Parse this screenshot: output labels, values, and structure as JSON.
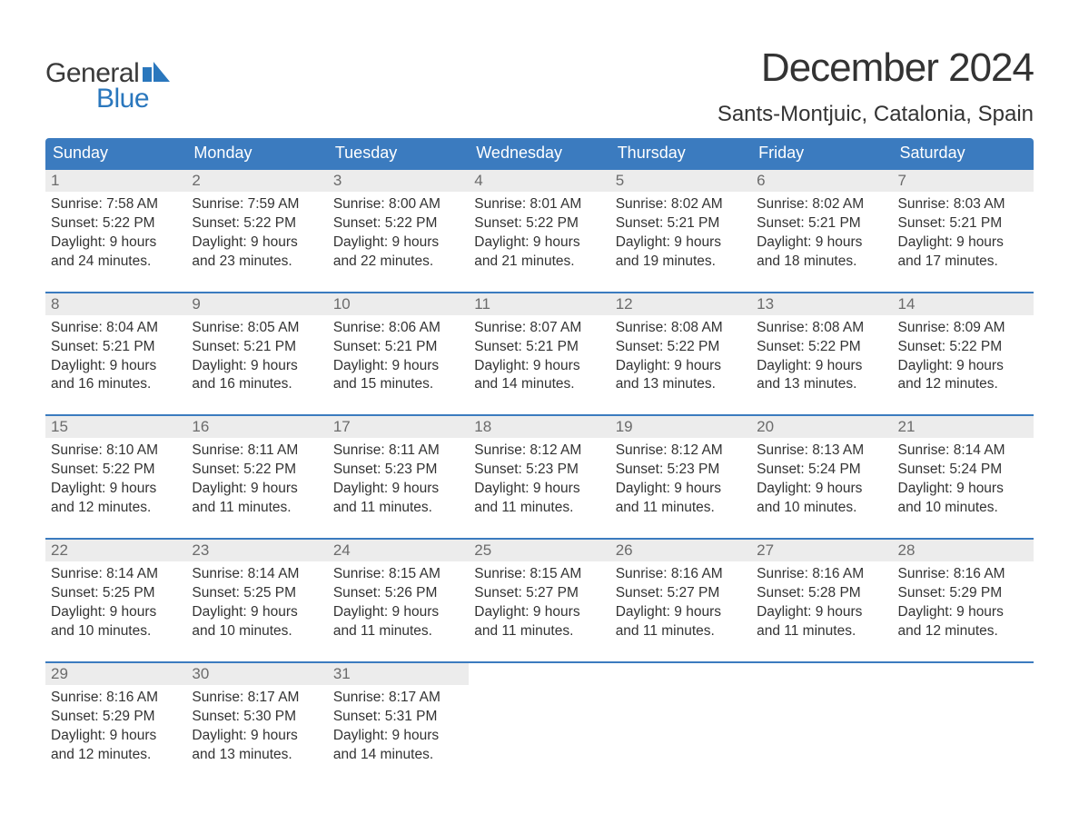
{
  "logo": {
    "text_general": "General",
    "text_blue": "Blue",
    "flag_color": "#2a77bd",
    "general_color": "#3a3a3a"
  },
  "header": {
    "month_title": "December 2024",
    "location": "Sants-Montjuic, Catalonia, Spain",
    "title_color": "#333333",
    "title_fontsize": 44,
    "location_fontsize": 24
  },
  "styling": {
    "weekday_bg": "#3b7bbf",
    "weekday_text_color": "#ffffff",
    "daynum_bg": "#ececec",
    "daynum_color": "#6b6b6b",
    "week_border_color": "#3b7bbf",
    "body_text_color": "#333333",
    "background_color": "#ffffff",
    "body_fontsize": 15.5,
    "weekday_fontsize": 18
  },
  "weekdays": [
    "Sunday",
    "Monday",
    "Tuesday",
    "Wednesday",
    "Thursday",
    "Friday",
    "Saturday"
  ],
  "weeks": [
    [
      {
        "n": "1",
        "sr": "Sunrise: 7:58 AM",
        "ss": "Sunset: 5:22 PM",
        "d1": "Daylight: 9 hours",
        "d2": "and 24 minutes."
      },
      {
        "n": "2",
        "sr": "Sunrise: 7:59 AM",
        "ss": "Sunset: 5:22 PM",
        "d1": "Daylight: 9 hours",
        "d2": "and 23 minutes."
      },
      {
        "n": "3",
        "sr": "Sunrise: 8:00 AM",
        "ss": "Sunset: 5:22 PM",
        "d1": "Daylight: 9 hours",
        "d2": "and 22 minutes."
      },
      {
        "n": "4",
        "sr": "Sunrise: 8:01 AM",
        "ss": "Sunset: 5:22 PM",
        "d1": "Daylight: 9 hours",
        "d2": "and 21 minutes."
      },
      {
        "n": "5",
        "sr": "Sunrise: 8:02 AM",
        "ss": "Sunset: 5:21 PM",
        "d1": "Daylight: 9 hours",
        "d2": "and 19 minutes."
      },
      {
        "n": "6",
        "sr": "Sunrise: 8:02 AM",
        "ss": "Sunset: 5:21 PM",
        "d1": "Daylight: 9 hours",
        "d2": "and 18 minutes."
      },
      {
        "n": "7",
        "sr": "Sunrise: 8:03 AM",
        "ss": "Sunset: 5:21 PM",
        "d1": "Daylight: 9 hours",
        "d2": "and 17 minutes."
      }
    ],
    [
      {
        "n": "8",
        "sr": "Sunrise: 8:04 AM",
        "ss": "Sunset: 5:21 PM",
        "d1": "Daylight: 9 hours",
        "d2": "and 16 minutes."
      },
      {
        "n": "9",
        "sr": "Sunrise: 8:05 AM",
        "ss": "Sunset: 5:21 PM",
        "d1": "Daylight: 9 hours",
        "d2": "and 16 minutes."
      },
      {
        "n": "10",
        "sr": "Sunrise: 8:06 AM",
        "ss": "Sunset: 5:21 PM",
        "d1": "Daylight: 9 hours",
        "d2": "and 15 minutes."
      },
      {
        "n": "11",
        "sr": "Sunrise: 8:07 AM",
        "ss": "Sunset: 5:21 PM",
        "d1": "Daylight: 9 hours",
        "d2": "and 14 minutes."
      },
      {
        "n": "12",
        "sr": "Sunrise: 8:08 AM",
        "ss": "Sunset: 5:22 PM",
        "d1": "Daylight: 9 hours",
        "d2": "and 13 minutes."
      },
      {
        "n": "13",
        "sr": "Sunrise: 8:08 AM",
        "ss": "Sunset: 5:22 PM",
        "d1": "Daylight: 9 hours",
        "d2": "and 13 minutes."
      },
      {
        "n": "14",
        "sr": "Sunrise: 8:09 AM",
        "ss": "Sunset: 5:22 PM",
        "d1": "Daylight: 9 hours",
        "d2": "and 12 minutes."
      }
    ],
    [
      {
        "n": "15",
        "sr": "Sunrise: 8:10 AM",
        "ss": "Sunset: 5:22 PM",
        "d1": "Daylight: 9 hours",
        "d2": "and 12 minutes."
      },
      {
        "n": "16",
        "sr": "Sunrise: 8:11 AM",
        "ss": "Sunset: 5:22 PM",
        "d1": "Daylight: 9 hours",
        "d2": "and 11 minutes."
      },
      {
        "n": "17",
        "sr": "Sunrise: 8:11 AM",
        "ss": "Sunset: 5:23 PM",
        "d1": "Daylight: 9 hours",
        "d2": "and 11 minutes."
      },
      {
        "n": "18",
        "sr": "Sunrise: 8:12 AM",
        "ss": "Sunset: 5:23 PM",
        "d1": "Daylight: 9 hours",
        "d2": "and 11 minutes."
      },
      {
        "n": "19",
        "sr": "Sunrise: 8:12 AM",
        "ss": "Sunset: 5:23 PM",
        "d1": "Daylight: 9 hours",
        "d2": "and 11 minutes."
      },
      {
        "n": "20",
        "sr": "Sunrise: 8:13 AM",
        "ss": "Sunset: 5:24 PM",
        "d1": "Daylight: 9 hours",
        "d2": "and 10 minutes."
      },
      {
        "n": "21",
        "sr": "Sunrise: 8:14 AM",
        "ss": "Sunset: 5:24 PM",
        "d1": "Daylight: 9 hours",
        "d2": "and 10 minutes."
      }
    ],
    [
      {
        "n": "22",
        "sr": "Sunrise: 8:14 AM",
        "ss": "Sunset: 5:25 PM",
        "d1": "Daylight: 9 hours",
        "d2": "and 10 minutes."
      },
      {
        "n": "23",
        "sr": "Sunrise: 8:14 AM",
        "ss": "Sunset: 5:25 PM",
        "d1": "Daylight: 9 hours",
        "d2": "and 10 minutes."
      },
      {
        "n": "24",
        "sr": "Sunrise: 8:15 AM",
        "ss": "Sunset: 5:26 PM",
        "d1": "Daylight: 9 hours",
        "d2": "and 11 minutes."
      },
      {
        "n": "25",
        "sr": "Sunrise: 8:15 AM",
        "ss": "Sunset: 5:27 PM",
        "d1": "Daylight: 9 hours",
        "d2": "and 11 minutes."
      },
      {
        "n": "26",
        "sr": "Sunrise: 8:16 AM",
        "ss": "Sunset: 5:27 PM",
        "d1": "Daylight: 9 hours",
        "d2": "and 11 minutes."
      },
      {
        "n": "27",
        "sr": "Sunrise: 8:16 AM",
        "ss": "Sunset: 5:28 PM",
        "d1": "Daylight: 9 hours",
        "d2": "and 11 minutes."
      },
      {
        "n": "28",
        "sr": "Sunrise: 8:16 AM",
        "ss": "Sunset: 5:29 PM",
        "d1": "Daylight: 9 hours",
        "d2": "and 12 minutes."
      }
    ],
    [
      {
        "n": "29",
        "sr": "Sunrise: 8:16 AM",
        "ss": "Sunset: 5:29 PM",
        "d1": "Daylight: 9 hours",
        "d2": "and 12 minutes."
      },
      {
        "n": "30",
        "sr": "Sunrise: 8:17 AM",
        "ss": "Sunset: 5:30 PM",
        "d1": "Daylight: 9 hours",
        "d2": "and 13 minutes."
      },
      {
        "n": "31",
        "sr": "Sunrise: 8:17 AM",
        "ss": "Sunset: 5:31 PM",
        "d1": "Daylight: 9 hours",
        "d2": "and 14 minutes."
      },
      {
        "empty": true
      },
      {
        "empty": true
      },
      {
        "empty": true
      },
      {
        "empty": true
      }
    ]
  ]
}
